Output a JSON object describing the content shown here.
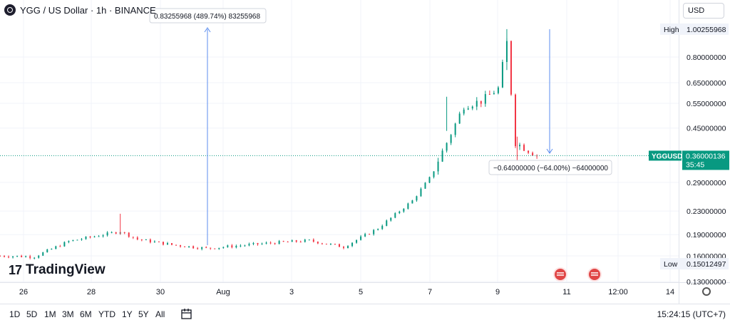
{
  "header": {
    "title": "YGG / US Dollar · 1h · BINANCE"
  },
  "currency_select": "USD",
  "measure_up": "0.83255968 (489.74%) 83255968",
  "measure_down": "−0.64000000 (−64.00%) −64000000",
  "symbol_tag": "YGGUSD",
  "countdown": "35:45",
  "high_label": "High",
  "low_label": "Low",
  "brand": "TradingView",
  "timeframes": [
    "1D",
    "5D",
    "1M",
    "3M",
    "6M",
    "YTD",
    "1Y",
    "5Y",
    "All"
  ],
  "clock": "15:24:15 (UTC+7)",
  "colors": {
    "up": "#089981",
    "down": "#f23645",
    "measure": "#5b8def",
    "grid": "#f0f3fa"
  },
  "icons": [
    "calendar-range-icon",
    "settings-icon",
    "event-flag-icon",
    "symbol-logo-icon"
  ],
  "chart_data": {
    "type": "candlestick",
    "scale": "log",
    "y_ticks": [
      0.13,
      0.16,
      0.19,
      0.23,
      0.29,
      0.45,
      0.55,
      0.65,
      0.8
    ],
    "y_tick_labels": [
      "0.13000000",
      "0.16000000",
      "0.19000000",
      "0.23000000",
      "0.29000000",
      "0.45000000",
      "0.55000000",
      "0.65000000",
      "0.80000000"
    ],
    "x_tick_labels": [
      "26",
      "28",
      "30",
      "Aug",
      "3",
      "5",
      "7",
      "9",
      "11",
      "12:00",
      "14"
    ],
    "high": {
      "label": "High",
      "value": "1.00255968"
    },
    "low": {
      "label": "Low",
      "value": "0.15012497"
    },
    "last_price": "0.36000136",
    "key_points": [
      {
        "time": "25 Jul",
        "price": 0.16
      },
      {
        "time": "26 Jul",
        "price": 0.159
      },
      {
        "time": "27 Jul",
        "price": 0.18
      },
      {
        "time": "28 Jul",
        "price": 0.19
      },
      {
        "time": "28 Jul 12:00",
        "price": 0.195
      },
      {
        "time": "29 Jul",
        "price": 0.183
      },
      {
        "time": "30 Jul",
        "price": 0.175
      },
      {
        "time": "31 Jul",
        "price": 0.17
      },
      {
        "time": "1 Aug",
        "price": 0.178
      },
      {
        "time": "2 Aug",
        "price": 0.181
      },
      {
        "time": "3 Aug",
        "price": 0.172
      },
      {
        "time": "4 Aug",
        "price": 0.2
      },
      {
        "time": "5 Aug",
        "price": 0.25
      },
      {
        "time": "5 Aug 12:00",
        "price": 0.3
      },
      {
        "time": "6 Aug",
        "price": 0.4
      },
      {
        "time": "6 Aug 12:00",
        "price": 0.54
      },
      {
        "time": "7 Aug",
        "price": 0.56
      },
      {
        "time": "7 Aug 12:00",
        "price": 0.62
      },
      {
        "time": "7 Aug 18:00",
        "price": 0.9
      },
      {
        "time": "8 Aug",
        "price": 0.4
      },
      {
        "time": "8 Aug 16:00",
        "price": 0.36
      }
    ]
  }
}
